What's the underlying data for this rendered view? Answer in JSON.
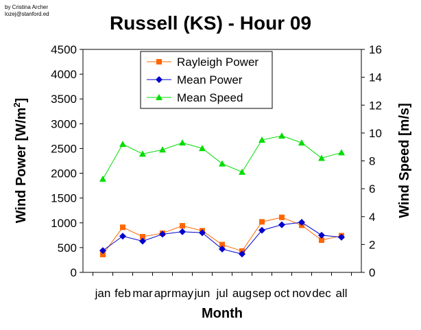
{
  "credit": {
    "line1": "by Cristina Archer",
    "line2": "lozej@stanford.ed"
  },
  "chart_data": {
    "type": "line",
    "title": "Russell (KS) - Hour 09",
    "xlabel": "Month",
    "ylabel_left": "Wind Power [W/m",
    "ylabel_left_sup": "2",
    "ylabel_left_end": "]",
    "ylabel_right": "Wind Speed [m/s]",
    "categories": [
      "jan",
      "feb",
      "mar",
      "apr",
      "may",
      "jun",
      "jul",
      "aug",
      "sep",
      "oct",
      "nov",
      "dec",
      "all"
    ],
    "ylim_left": [
      0,
      4500
    ],
    "yticks_left": [
      0,
      500,
      1000,
      1500,
      2000,
      2500,
      3000,
      3500,
      4000,
      4500
    ],
    "ylim_right": [
      0,
      16
    ],
    "yticks_right": [
      0,
      2,
      4,
      6,
      8,
      10,
      12,
      14,
      16
    ],
    "grid": false,
    "legend_position": "top-center",
    "series": [
      {
        "name": "Rayleigh Power",
        "axis": "left",
        "color": "#ff6600",
        "marker": "square",
        "values": [
          360,
          910,
          720,
          790,
          940,
          840,
          560,
          430,
          1020,
          1110,
          950,
          650,
          740
        ]
      },
      {
        "name": "Mean Power",
        "axis": "left",
        "color": "#0000cc",
        "marker": "diamond",
        "values": [
          440,
          730,
          630,
          770,
          820,
          800,
          470,
          370,
          850,
          960,
          1010,
          750,
          710
        ]
      },
      {
        "name": "Mean Speed",
        "axis": "right",
        "color": "#00dd00",
        "marker": "triangle",
        "values": [
          6.7,
          9.2,
          8.5,
          8.8,
          9.3,
          8.9,
          7.8,
          7.2,
          9.5,
          9.8,
          9.3,
          8.2,
          8.6
        ]
      }
    ]
  }
}
